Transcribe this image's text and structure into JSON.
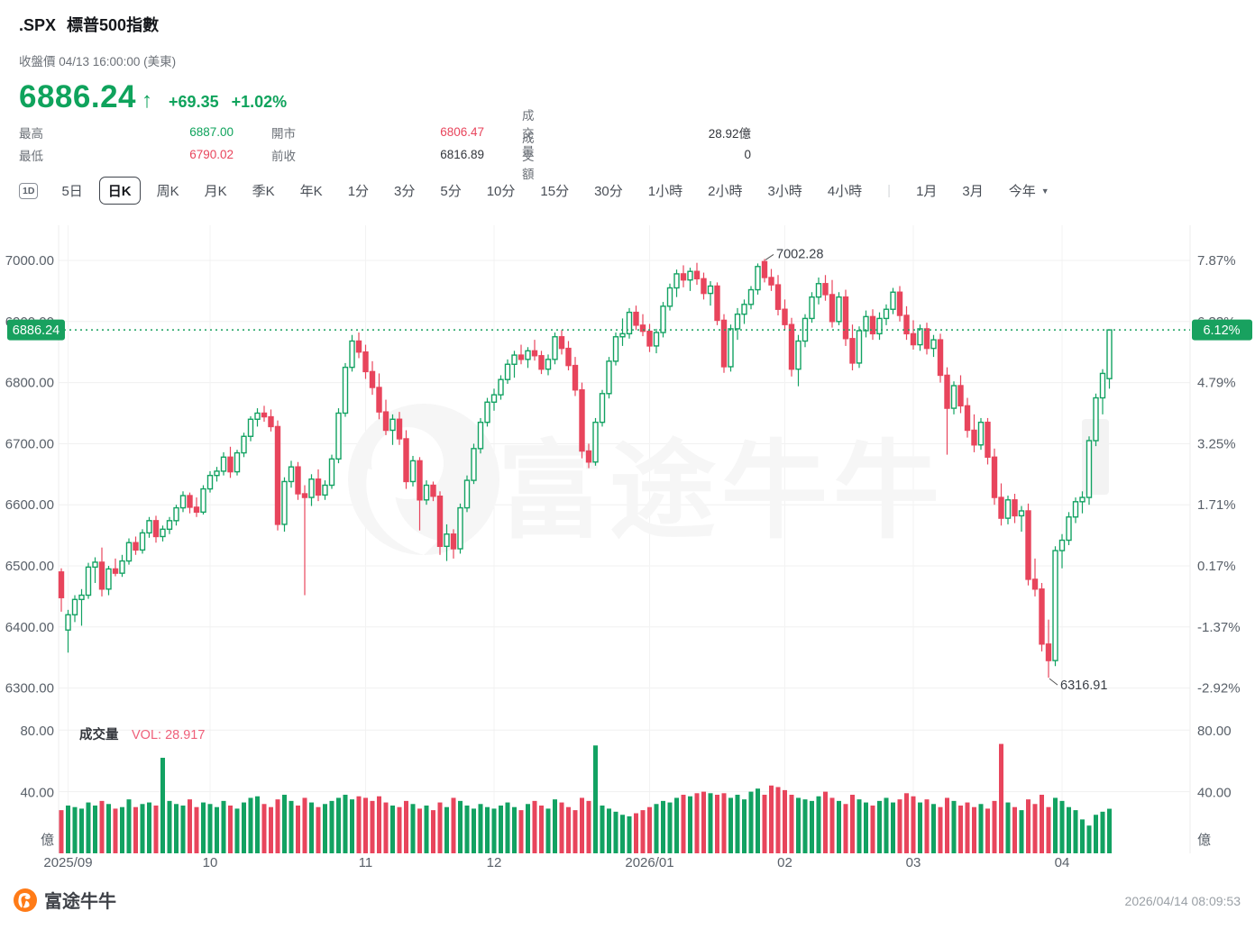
{
  "header": {
    "symbol": ".SPX",
    "name": "標普500指數",
    "close_info": "收盤價 04/13 16:00:00 (美東)",
    "price": "6886.24",
    "arrow": "↑",
    "change": "+69.35",
    "change_pct": "+1.02%"
  },
  "stats": {
    "high_label": "最高",
    "high_value": "6887.00",
    "low_label": "最低",
    "low_value": "6790.02",
    "open_label": "開市",
    "open_value": "6806.47",
    "prev_label": "前收",
    "prev_value": "6816.89",
    "vol_label": "成交量",
    "vol_value": "28.92億",
    "turnover_label": "成交額",
    "turnover_value": "0"
  },
  "toolbar": {
    "icon_button": "1D",
    "items": [
      "5日",
      "日K",
      "周K",
      "月K",
      "季K",
      "年K",
      "1分",
      "3分",
      "5分",
      "10分",
      "15分",
      "30分",
      "1小時",
      "2小時",
      "3小時",
      "4小時"
    ],
    "selected": "日K",
    "more_items": [
      "1月",
      "3月"
    ],
    "dropdown": "今年"
  },
  "chart_data": {
    "type": "candlestick",
    "price_axis": [
      7000,
      6900,
      6800,
      6700,
      6600,
      6500,
      6400,
      6300
    ],
    "price_axis_labels": [
      "7000.00",
      "6900.00",
      "6800.00",
      "6700.00",
      "6600.00",
      "6500.00",
      "6400.00",
      "6300.00"
    ],
    "pct_axis_labels": [
      "7.87%",
      "6.33%",
      "4.79%",
      "3.25%",
      "1.71%",
      "0.17%",
      "-1.37%",
      "-2.92%"
    ],
    "last_price": {
      "value": 6886.24,
      "price_label": "6886.24",
      "pct_label": "6.12%"
    },
    "annotations": [
      {
        "text": "7002.28",
        "candle": 104,
        "type": "high"
      },
      {
        "text": "6316.91",
        "candle": 146,
        "type": "low"
      }
    ],
    "x_ticks": [
      {
        "i": 1,
        "label": "2025/09"
      },
      {
        "i": 22,
        "label": "10"
      },
      {
        "i": 45,
        "label": "11"
      },
      {
        "i": 64,
        "label": "12"
      },
      {
        "i": 87,
        "label": "2026/01"
      },
      {
        "i": 107,
        "label": "02"
      },
      {
        "i": 126,
        "label": "03"
      },
      {
        "i": 148,
        "label": "04"
      }
    ],
    "volume_pane": {
      "title": "成交量",
      "vol_text": "VOL: 28.917",
      "axis_top": "80.00",
      "axis_mid": "40.00",
      "unit": "億"
    },
    "watermark": "富途牛牛",
    "candles": [
      [
        6490,
        6496,
        6425,
        6448,
        28
      ],
      [
        6395,
        6428,
        6358,
        6420,
        31
      ],
      [
        6420,
        6452,
        6408,
        6445,
        30
      ],
      [
        6445,
        6462,
        6402,
        6452,
        29
      ],
      [
        6452,
        6505,
        6446,
        6498,
        33
      ],
      [
        6498,
        6514,
        6472,
        6506,
        31
      ],
      [
        6506,
        6530,
        6450,
        6462,
        34
      ],
      [
        6462,
        6500,
        6452,
        6495,
        32
      ],
      [
        6495,
        6512,
        6483,
        6488,
        29
      ],
      [
        6488,
        6518,
        6482,
        6508,
        30
      ],
      [
        6508,
        6545,
        6502,
        6538,
        35
      ],
      [
        6538,
        6548,
        6518,
        6526,
        30
      ],
      [
        6526,
        6560,
        6520,
        6554,
        32
      ],
      [
        6554,
        6580,
        6546,
        6574,
        33
      ],
      [
        6574,
        6582,
        6538,
        6548,
        31
      ],
      [
        6548,
        6566,
        6540,
        6560,
        62
      ],
      [
        6560,
        6580,
        6552,
        6574,
        34
      ],
      [
        6574,
        6600,
        6566,
        6595,
        32
      ],
      [
        6595,
        6622,
        6588,
        6615,
        31
      ],
      [
        6615,
        6620,
        6586,
        6596,
        35
      ],
      [
        6596,
        6612,
        6580,
        6588,
        30
      ],
      [
        6588,
        6632,
        6584,
        6626,
        33
      ],
      [
        6626,
        6655,
        6620,
        6648,
        32
      ],
      [
        6648,
        6662,
        6638,
        6655,
        30
      ],
      [
        6655,
        6686,
        6648,
        6678,
        34
      ],
      [
        6678,
        6695,
        6644,
        6654,
        31
      ],
      [
        6654,
        6690,
        6648,
        6685,
        29
      ],
      [
        6685,
        6718,
        6678,
        6712,
        33
      ],
      [
        6712,
        6745,
        6704,
        6740,
        36
      ],
      [
        6740,
        6758,
        6728,
        6750,
        37
      ],
      [
        6750,
        6762,
        6736,
        6744,
        32
      ],
      [
        6744,
        6756,
        6720,
        6728,
        30
      ],
      [
        6728,
        6738,
        6558,
        6568,
        35
      ],
      [
        6568,
        6645,
        6556,
        6638,
        38
      ],
      [
        6638,
        6672,
        6628,
        6662,
        34
      ],
      [
        6662,
        6670,
        6608,
        6618,
        31
      ],
      [
        6618,
        6632,
        6452,
        6612,
        36
      ],
      [
        6612,
        6650,
        6598,
        6642,
        33
      ],
      [
        6642,
        6658,
        6606,
        6616,
        30
      ],
      [
        6616,
        6640,
        6608,
        6632,
        32
      ],
      [
        6632,
        6682,
        6626,
        6675,
        34
      ],
      [
        6675,
        6758,
        6668,
        6750,
        36
      ],
      [
        6750,
        6832,
        6744,
        6825,
        38
      ],
      [
        6825,
        6878,
        6818,
        6868,
        35
      ],
      [
        6868,
        6882,
        6840,
        6850,
        37
      ],
      [
        6850,
        6862,
        6806,
        6818,
        36
      ],
      [
        6818,
        6835,
        6780,
        6792,
        34
      ],
      [
        6792,
        6815,
        6740,
        6752,
        37
      ],
      [
        6752,
        6772,
        6714,
        6722,
        33
      ],
      [
        6722,
        6748,
        6698,
        6740,
        31
      ],
      [
        6740,
        6752,
        6698,
        6708,
        30
      ],
      [
        6708,
        6722,
        6626,
        6638,
        34
      ],
      [
        6638,
        6680,
        6630,
        6672,
        32
      ],
      [
        6672,
        6678,
        6558,
        6608,
        29
      ],
      [
        6608,
        6640,
        6600,
        6632,
        31
      ],
      [
        6632,
        6638,
        6606,
        6614,
        28
      ],
      [
        6614,
        6622,
        6518,
        6532,
        33
      ],
      [
        6532,
        6568,
        6508,
        6552,
        30
      ],
      [
        6552,
        6560,
        6512,
        6528,
        36
      ],
      [
        6528,
        6602,
        6520,
        6595,
        34
      ],
      [
        6595,
        6648,
        6588,
        6640,
        31
      ],
      [
        6640,
        6700,
        6634,
        6692,
        29
      ],
      [
        6692,
        6742,
        6684,
        6735,
        32
      ],
      [
        6735,
        6775,
        6728,
        6768,
        30
      ],
      [
        6768,
        6790,
        6754,
        6780,
        29
      ],
      [
        6780,
        6812,
        6772,
        6805,
        31
      ],
      [
        6805,
        6838,
        6798,
        6830,
        33
      ],
      [
        6830,
        6852,
        6808,
        6845,
        30
      ],
      [
        6845,
        6862,
        6830,
        6838,
        28
      ],
      [
        6838,
        6858,
        6824,
        6852,
        32
      ],
      [
        6852,
        6870,
        6836,
        6844,
        34
      ],
      [
        6844,
        6852,
        6814,
        6822,
        31
      ],
      [
        6822,
        6846,
        6812,
        6838,
        29
      ],
      [
        6838,
        6882,
        6830,
        6875,
        35
      ],
      [
        6875,
        6886,
        6846,
        6856,
        33
      ],
      [
        6856,
        6868,
        6820,
        6828,
        30
      ],
      [
        6828,
        6842,
        6778,
        6788,
        28
      ],
      [
        6788,
        6800,
        6676,
        6688,
        36
      ],
      [
        6688,
        6700,
        6660,
        6670,
        34
      ],
      [
        6670,
        6742,
        6664,
        6735,
        70
      ],
      [
        6735,
        6788,
        6728,
        6782,
        31
      ],
      [
        6782,
        6842,
        6774,
        6835,
        29
      ],
      [
        6835,
        6882,
        6828,
        6875,
        27
      ],
      [
        6875,
        6905,
        6860,
        6880,
        25
      ],
      [
        6880,
        6922,
        6872,
        6915,
        24
      ],
      [
        6915,
        6926,
        6886,
        6894,
        26
      ],
      [
        6894,
        6912,
        6876,
        6884,
        28
      ],
      [
        6884,
        6896,
        6850,
        6860,
        30
      ],
      [
        6860,
        6888,
        6848,
        6882,
        32
      ],
      [
        6882,
        6932,
        6874,
        6925,
        34
      ],
      [
        6925,
        6962,
        6918,
        6955,
        33
      ],
      [
        6955,
        6985,
        6940,
        6978,
        36
      ],
      [
        6978,
        6992,
        6956,
        6968,
        38
      ],
      [
        6968,
        6988,
        6950,
        6982,
        37
      ],
      [
        6982,
        6996,
        6960,
        6970,
        39
      ],
      [
        6970,
        6980,
        6936,
        6946,
        40
      ],
      [
        6946,
        6966,
        6926,
        6958,
        39
      ],
      [
        6958,
        6964,
        6894,
        6902,
        38
      ],
      [
        6902,
        6912,
        6816,
        6826,
        39
      ],
      [
        6826,
        6895,
        6818,
        6888,
        36
      ],
      [
        6888,
        6922,
        6870,
        6912,
        38
      ],
      [
        6912,
        6936,
        6896,
        6928,
        35
      ],
      [
        6928,
        6958,
        6920,
        6952,
        40
      ],
      [
        6952,
        6995,
        6944,
        6990,
        42
      ],
      [
        6998,
        7002.28,
        6964,
        6972,
        38
      ],
      [
        6972,
        6986,
        6950,
        6960,
        44
      ],
      [
        6960,
        6976,
        6910,
        6920,
        43
      ],
      [
        6920,
        6936,
        6886,
        6895,
        41
      ],
      [
        6895,
        6906,
        6810,
        6822,
        38
      ],
      [
        6822,
        6878,
        6794,
        6868,
        36
      ],
      [
        6868,
        6912,
        6858,
        6905,
        35
      ],
      [
        6905,
        6948,
        6898,
        6940,
        34
      ],
      [
        6940,
        6972,
        6928,
        6962,
        37
      ],
      [
        6962,
        6976,
        6934,
        6944,
        40
      ],
      [
        6944,
        6968,
        6890,
        6900,
        36
      ],
      [
        6900,
        6948,
        6894,
        6940,
        34
      ],
      [
        6940,
        6952,
        6860,
        6872,
        32
      ],
      [
        6872,
        6895,
        6820,
        6832,
        38
      ],
      [
        6832,
        6892,
        6824,
        6885,
        35
      ],
      [
        6885,
        6918,
        6874,
        6908,
        33
      ],
      [
        6908,
        6920,
        6870,
        6880,
        31
      ],
      [
        6880,
        6915,
        6870,
        6905,
        34
      ],
      [
        6905,
        6928,
        6894,
        6920,
        36
      ],
      [
        6920,
        6955,
        6912,
        6948,
        33
      ],
      [
        6948,
        6958,
        6900,
        6910,
        35
      ],
      [
        6910,
        6925,
        6870,
        6880,
        39
      ],
      [
        6880,
        6902,
        6854,
        6862,
        37
      ],
      [
        6862,
        6895,
        6852,
        6888,
        33
      ],
      [
        6888,
        6898,
        6846,
        6856,
        35
      ],
      [
        6856,
        6878,
        6842,
        6870,
        32
      ],
      [
        6870,
        6880,
        6800,
        6812,
        30
      ],
      [
        6812,
        6825,
        6682,
        6758,
        36
      ],
      [
        6758,
        6802,
        6748,
        6795,
        34
      ],
      [
        6795,
        6812,
        6750,
        6762,
        31
      ],
      [
        6762,
        6775,
        6710,
        6722,
        33
      ],
      [
        6722,
        6748,
        6686,
        6698,
        30
      ],
      [
        6698,
        6742,
        6690,
        6735,
        32
      ],
      [
        6735,
        6742,
        6666,
        6678,
        29
      ],
      [
        6678,
        6692,
        6600,
        6612,
        34
      ],
      [
        6612,
        6635,
        6566,
        6578,
        71
      ],
      [
        6578,
        6615,
        6568,
        6608,
        33
      ],
      [
        6608,
        6618,
        6570,
        6582,
        30
      ],
      [
        6582,
        6598,
        6556,
        6590,
        28
      ],
      [
        6590,
        6602,
        6468,
        6478,
        35
      ],
      [
        6478,
        6512,
        6450,
        6462,
        32
      ],
      [
        6462,
        6472,
        6360,
        6372,
        38
      ],
      [
        6372,
        6412,
        6316.91,
        6345,
        30
      ],
      [
        6345,
        6532,
        6336,
        6525,
        36
      ],
      [
        6525,
        6552,
        6496,
        6542,
        34
      ],
      [
        6542,
        6588,
        6534,
        6580,
        30
      ],
      [
        6580,
        6612,
        6570,
        6605,
        28
      ],
      [
        6605,
        6622,
        6586,
        6612,
        22
      ],
      [
        6612,
        6712,
        6600,
        6705,
        18
      ],
      [
        6705,
        6782,
        6696,
        6775,
        25
      ],
      [
        6775,
        6822,
        6748,
        6815,
        27
      ],
      [
        6806.47,
        6887.0,
        6790.02,
        6886.24,
        28.92
      ]
    ]
  },
  "footer": {
    "brand": "富途牛牛",
    "timestamp": "2026/04/14 08:09:53"
  },
  "colors": {
    "up": "#12a262",
    "down": "#e8455c",
    "tag_bg": "#18a15f",
    "price_green": "#0fa35c",
    "value_red": "#e8455c",
    "neutral_value": "#33363c",
    "axis_text": "#596069",
    "grid": "#f0f0f0",
    "vol_label_pink": "#ef607a",
    "watermark": "#f6f6f6",
    "brand_orange": "#ff7b17"
  }
}
